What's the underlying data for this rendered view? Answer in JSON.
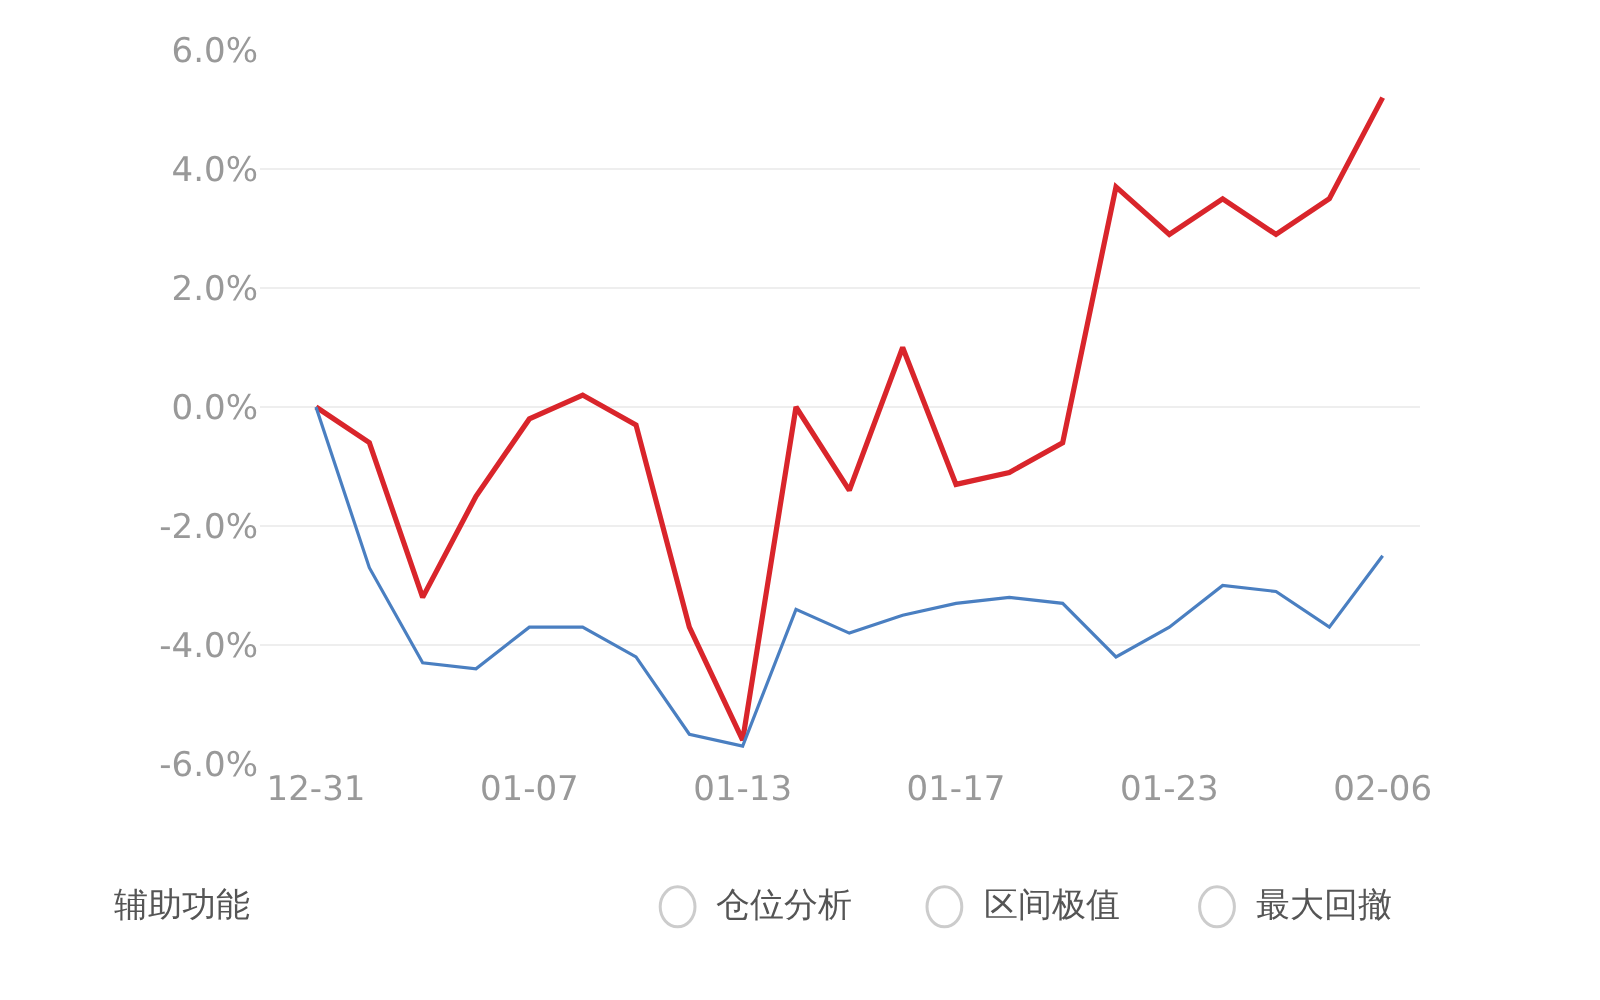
{
  "chart_data": {
    "type": "line",
    "categories": [
      "12-31",
      null,
      null,
      null,
      "01-07",
      null,
      null,
      null,
      "01-13",
      null,
      null,
      null,
      "01-17",
      null,
      null,
      null,
      "01-23",
      null,
      null,
      null,
      "02-06"
    ],
    "series": [
      {
        "color": "#d9252b",
        "values": [
          0,
          -0.6,
          -3.2,
          -1.5,
          -0.2,
          0.2,
          -0.3,
          -3.7,
          -5.6,
          0.0,
          -1.4,
          1.0,
          -1.3,
          -1.1,
          -0.6,
          3.7,
          2.9,
          3.5,
          2.9,
          3.5,
          5.2
        ]
      },
      {
        "color": "#4a7fc1",
        "values": [
          0,
          -2.7,
          -4.3,
          -4.4,
          -3.7,
          -3.7,
          -4.2,
          -5.5,
          -5.7,
          -3.4,
          -3.8,
          -3.5,
          -3.3,
          -3.2,
          -3.3,
          -4.2,
          -3.7,
          -3.0,
          -3.1,
          -3.7,
          -2.5
        ]
      }
    ],
    "ylim": [
      -6,
      6
    ],
    "yticks": [
      {
        "value": -6,
        "label": "-6.0%"
      },
      {
        "value": -4,
        "label": "-4.0%"
      },
      {
        "value": -2,
        "label": "-2.0%"
      },
      {
        "value": 0,
        "label": "0.0%"
      },
      {
        "value": 2,
        "label": "2.0%"
      },
      {
        "value": 4,
        "label": "4.0%"
      },
      {
        "value": 6,
        "label": "6.0%"
      }
    ],
    "grid": "y",
    "marker": "none",
    "line_style": "solid",
    "annotations": [
      "辅助功能",
      "仓位分析",
      "区间极值",
      "最大回撤"
    ]
  }
}
